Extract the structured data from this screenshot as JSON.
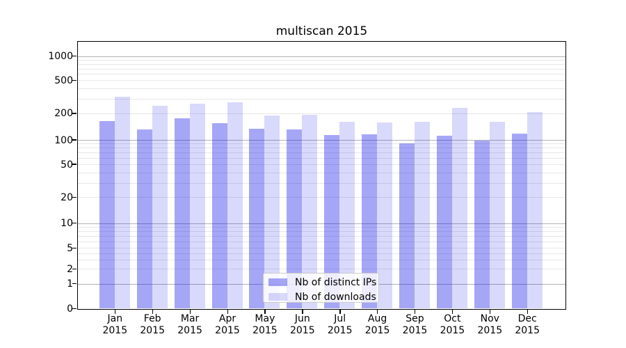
{
  "chart_data": {
    "type": "bar",
    "title": "multiscan 2015",
    "months": [
      "Jan",
      "Feb",
      "Mar",
      "Apr",
      "May",
      "Jun",
      "Jul",
      "Aug",
      "Sep",
      "Oct",
      "Nov",
      "Dec"
    ],
    "x_tick_line2": "2015",
    "categories": [
      "Jan 2015",
      "Feb 2015",
      "Mar 2015",
      "Apr 2015",
      "May 2015",
      "Jun 2015",
      "Jul 2015",
      "Aug 2015",
      "Sep 2015",
      "Oct 2015",
      "Nov 2015",
      "Dec 2015"
    ],
    "series": [
      {
        "name": "Nb of distinct IPs",
        "color": "#0000e6",
        "alpha": 0.35,
        "values": [
          165,
          131,
          175,
          156,
          133,
          131,
          114,
          116,
          91,
          111,
          99,
          117
        ]
      },
      {
        "name": "Nb of downloads",
        "color": "#0000e6",
        "alpha": 0.15,
        "values": [
          318,
          248,
          264,
          272,
          188,
          194,
          162,
          159,
          160,
          235,
          160,
          209
        ]
      }
    ],
    "yscale": "symlog",
    "y_ticks": [
      0,
      1,
      2,
      5,
      10,
      20,
      50,
      100,
      200,
      500,
      1000
    ],
    "ylim": [
      0,
      1330
    ],
    "grid": "both",
    "legend_position": "lower center (inside plot)",
    "colors": {
      "bar_dark_over_white": "#a6a6f7",
      "bar_light_over_white": "#d9d9fc",
      "grid_major": "#b2b2b2",
      "grid_minor": "#e7e7e7",
      "spine": "#000000"
    }
  }
}
